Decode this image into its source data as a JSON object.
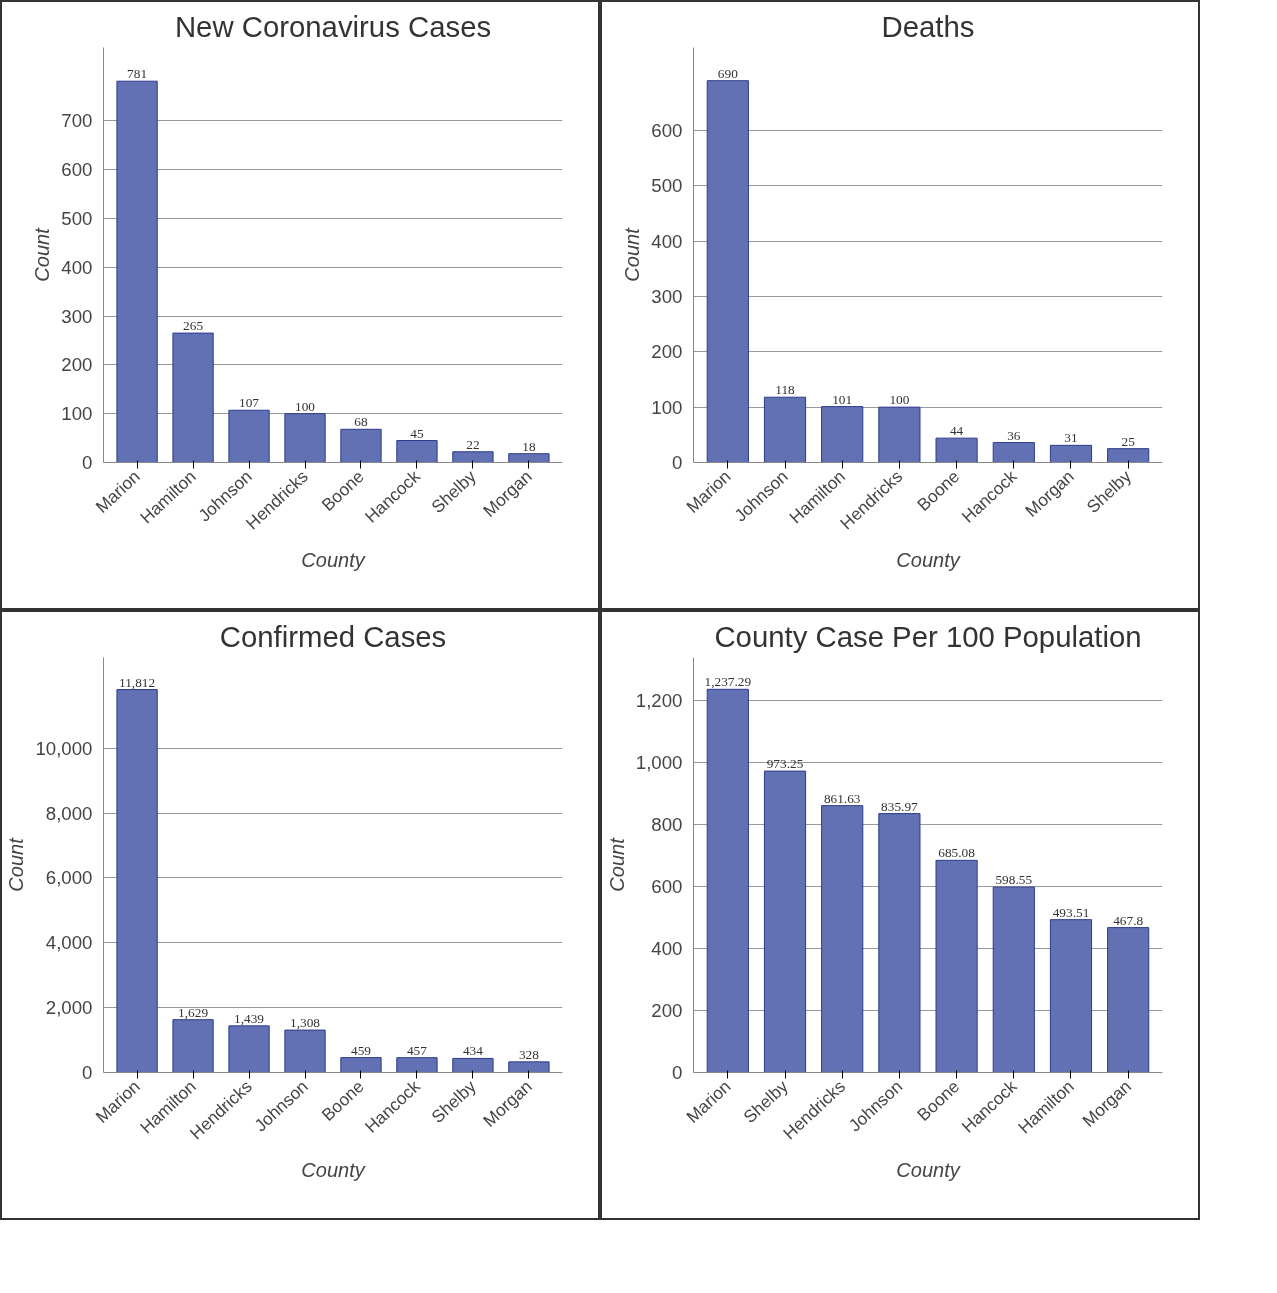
{
  "chart_data": [
    {
      "type": "bar",
      "title": "New Coronavirus Cases",
      "xlabel": "County",
      "ylabel": "Count",
      "categories": [
        "Marion",
        "Hamilton",
        "Johnson",
        "Hendricks",
        "Boone",
        "Hancock",
        "Shelby",
        "Morgan"
      ],
      "values": [
        781,
        265,
        107,
        100,
        68,
        45,
        22,
        18
      ],
      "color": "#6270b4",
      "ylim": [
        0,
        850
      ],
      "yticks": [
        0,
        100,
        200,
        300,
        400,
        500,
        600,
        700
      ],
      "grid": "y",
      "data_labels": true
    },
    {
      "type": "bar",
      "title": "Deaths",
      "xlabel": "County",
      "ylabel": "Count",
      "categories": [
        "Marion",
        "Johnson",
        "Hamilton",
        "Hendricks",
        "Boone",
        "Hancock",
        "Morgan",
        "Shelby"
      ],
      "values": [
        690,
        118,
        101,
        100,
        44,
        36,
        31,
        25
      ],
      "color": "#6270b4",
      "ylim": [
        0,
        750
      ],
      "yticks": [
        0,
        100,
        200,
        300,
        400,
        500,
        600
      ],
      "grid": "y",
      "data_labels": true
    },
    {
      "type": "bar",
      "title": "Confirmed Cases",
      "xlabel": "County",
      "ylabel": "Count",
      "categories": [
        "Marion",
        "Hamilton",
        "Hendricks",
        "Johnson",
        "Boone",
        "Hancock",
        "Shelby",
        "Morgan"
      ],
      "values": [
        11812,
        1629,
        1439,
        1308,
        459,
        457,
        434,
        328
      ],
      "value_labels": [
        "11,812",
        "1,629",
        "1,439",
        "1,308",
        "459",
        "457",
        "434",
        "328"
      ],
      "color": "#6270b4",
      "ylim": [
        0,
        12800
      ],
      "yticks": [
        0,
        {
          "value": 2000,
          "label": "2,000"
        },
        {
          "value": 4000,
          "label": "4,000"
        },
        {
          "value": 6000,
          "label": "6,000"
        },
        {
          "value": 8000,
          "label": "8,000"
        },
        {
          "value": 10000,
          "label": "10,000"
        }
      ],
      "grid": "y"
    },
    {
      "type": "bar",
      "title": "County Case Per 100 Population",
      "xlabel": "County",
      "ylabel": "Count",
      "categories": [
        "Marion",
        "Shelby",
        "Hendricks",
        "Johnson",
        "Boone",
        "Hancock",
        "Hamilton",
        "Morgan"
      ],
      "values": [
        1237.29,
        973.25,
        861.63,
        835.97,
        685.08,
        598.55,
        493.51,
        467.8
      ],
      "value_labels": [
        "1,237.29",
        "973.25",
        "861.63",
        "835.97",
        "685.08",
        "598.55",
        "493.51",
        "467.8"
      ],
      "color": "#6270b4",
      "ylim": [
        0,
        1340
      ],
      "yticks": [
        0,
        200,
        400,
        600,
        800,
        {
          "value": 1000,
          "label": "1,000"
        },
        {
          "value": 1200,
          "label": "1,200"
        }
      ],
      "grid": "y"
    }
  ]
}
